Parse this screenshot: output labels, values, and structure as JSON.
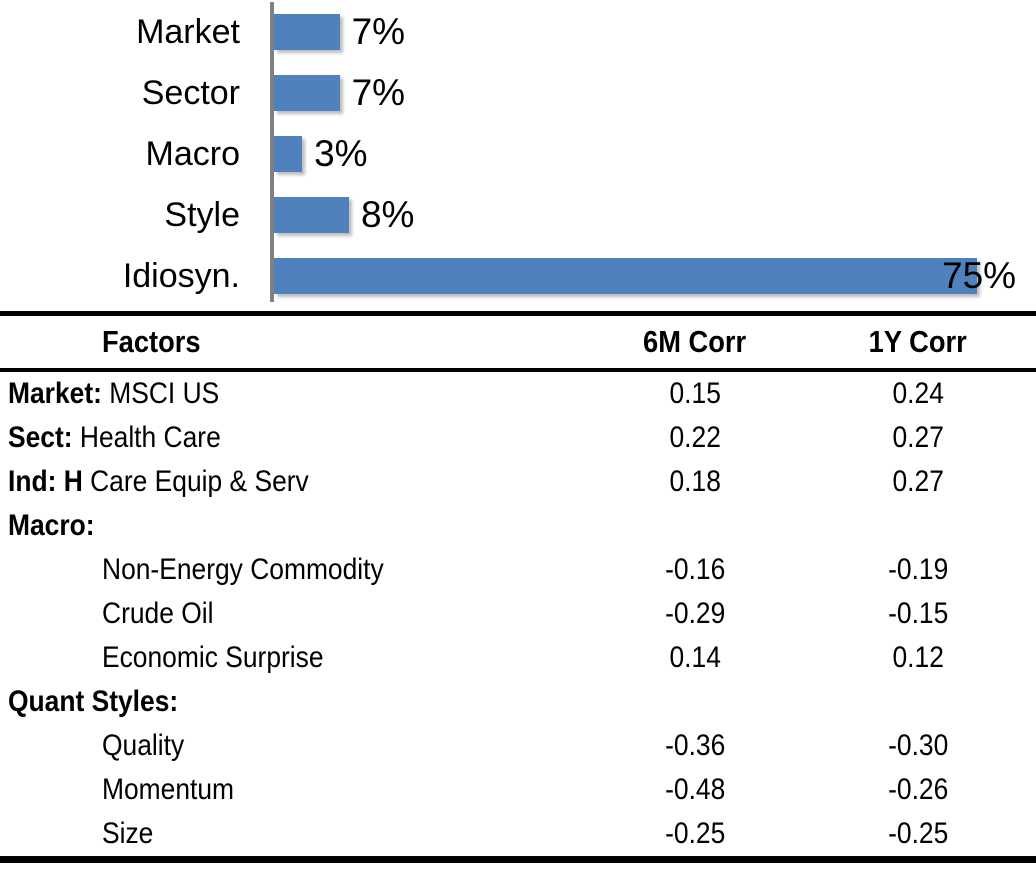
{
  "chart_data": {
    "type": "bar",
    "orientation": "horizontal",
    "title": "",
    "xlabel": "",
    "ylabel": "",
    "categories": [
      "Market",
      "Sector",
      "Macro",
      "Style",
      "Idiosyn."
    ],
    "values": [
      7,
      7,
      3,
      8,
      75
    ],
    "value_labels": [
      "7%",
      "7%",
      "3%",
      "8%",
      "75%"
    ],
    "xlim": [
      0,
      80
    ],
    "grid": false,
    "legend": false,
    "bar_color": "#4F81BD",
    "axis_color": "#808080"
  },
  "table": {
    "headers": {
      "factors": "Factors",
      "corr6m": "6M Corr",
      "corr1y": "1Y Corr"
    },
    "rows": [
      {
        "bold": "Market:",
        "rest": " MSCI US",
        "indent": false,
        "c6m": "0.15",
        "c1y": "0.24"
      },
      {
        "bold": "Sect:",
        "rest": " Health Care",
        "indent": false,
        "c6m": "0.22",
        "c1y": "0.27"
      },
      {
        "bold": "Ind: H",
        "rest": " Care Equip & Serv",
        "indent": false,
        "c6m": "0.18",
        "c1y": "0.27"
      },
      {
        "bold": "Macro:",
        "rest": "",
        "indent": false,
        "c6m": "",
        "c1y": ""
      },
      {
        "bold": "",
        "rest": "Non-Energy Commodity",
        "indent": true,
        "c6m": "-0.16",
        "c1y": "-0.19"
      },
      {
        "bold": "",
        "rest": "Crude Oil",
        "indent": true,
        "c6m": "-0.29",
        "c1y": "-0.15"
      },
      {
        "bold": "",
        "rest": "Economic Surprise",
        "indent": true,
        "c6m": "0.14",
        "c1y": "0.12"
      },
      {
        "bold": "Quant Styles:",
        "rest": "",
        "indent": false,
        "c6m": "",
        "c1y": ""
      },
      {
        "bold": "",
        "rest": "Quality",
        "indent": true,
        "c6m": "-0.36",
        "c1y": "-0.30"
      },
      {
        "bold": "",
        "rest": "Momentum",
        "indent": true,
        "c6m": "-0.48",
        "c1y": "-0.26"
      },
      {
        "bold": "",
        "rest": "Size",
        "indent": true,
        "c6m": "-0.25",
        "c1y": "-0.25"
      }
    ]
  }
}
